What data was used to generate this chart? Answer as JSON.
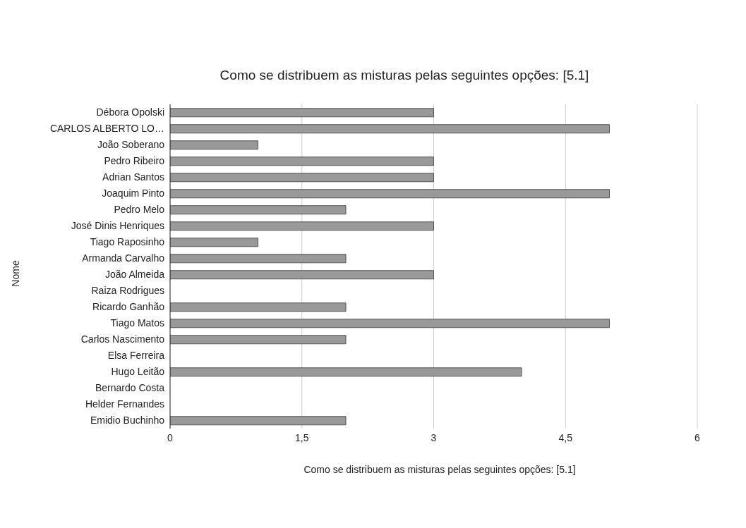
{
  "chart_data": {
    "type": "bar",
    "orientation": "horizontal",
    "title": "Como se distribuem as misturas pelas seguintes opções: [5.1]",
    "xlabel": "Como se distribuem as misturas pelas seguintes opções: [5.1]",
    "ylabel": "Nome",
    "categories": [
      "Débora Opolski",
      "CARLOS ALBERTO LO…",
      "João Soberano",
      "Pedro Ribeiro",
      "Adrian Santos",
      "Joaquim Pinto",
      "Pedro Melo",
      "José Dinis Henriques",
      "Tiago Raposinho",
      "Armanda Carvalho",
      "João Almeida",
      "Raiza Rodrigues",
      "Ricardo Ganhão",
      "Tiago Matos",
      "Carlos Nascimento",
      "Elsa Ferreira",
      "Hugo Leitão",
      "Bernardo Costa",
      "Helder Fernandes",
      "Emidio Buchinho"
    ],
    "values": [
      3,
      5,
      1,
      3,
      3,
      5,
      2,
      3,
      1,
      2,
      3,
      0,
      2,
      5,
      2,
      0,
      4,
      0,
      0,
      2
    ],
    "color": "#999999",
    "xlim": [
      0,
      6
    ],
    "xticks": [
      0,
      {
        "value": 1.5,
        "label": "1,5"
      },
      3,
      {
        "value": 4.5,
        "label": "4,5"
      },
      6
    ],
    "grid": "x",
    "legend": false
  }
}
